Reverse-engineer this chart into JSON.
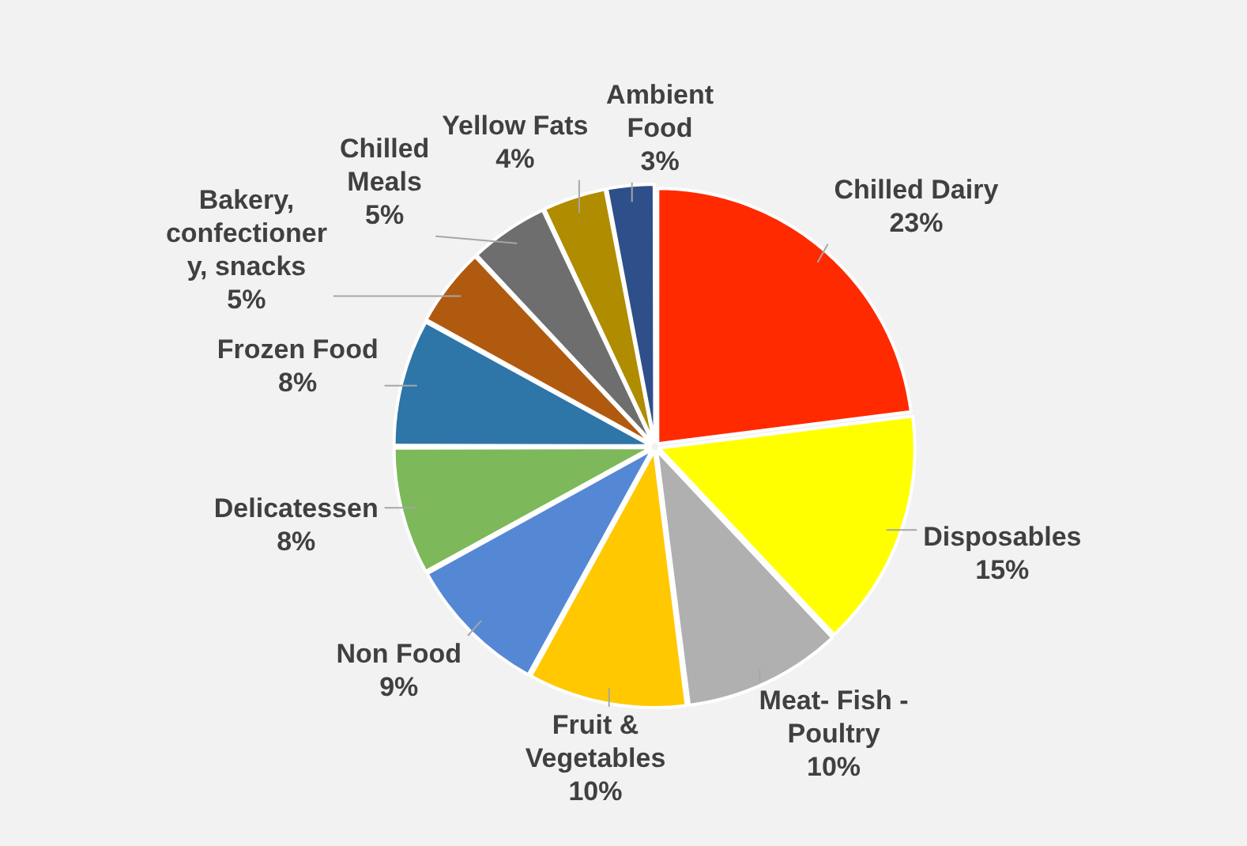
{
  "chart_data": {
    "type": "pie",
    "categories": [
      "Chilled Dairy",
      "Disposables",
      "Meat- Fish - Poultry",
      "Fruit & Vegetables",
      "Non Food",
      "Delicatessen",
      "Frozen Food",
      "Bakery, confectionery, snacks",
      "Chilled Meals",
      "Yellow Fats",
      "Ambient Food"
    ],
    "values": [
      23,
      15,
      10,
      10,
      9,
      8,
      8,
      5,
      5,
      4,
      3
    ],
    "colors": [
      "#ff2a00",
      "#ffff00",
      "#b0b0b0",
      "#ffc800",
      "#5588d4",
      "#7db85a",
      "#2e75a8",
      "#b05a10",
      "#6e6e6e",
      "#b08c00",
      "#2e4f8a"
    ],
    "value_labels": [
      "23%",
      "15%",
      "10%",
      "10%",
      "9%",
      "8%",
      "8%",
      "5%",
      "5%",
      "4%",
      "3%"
    ],
    "legend": false
  }
}
